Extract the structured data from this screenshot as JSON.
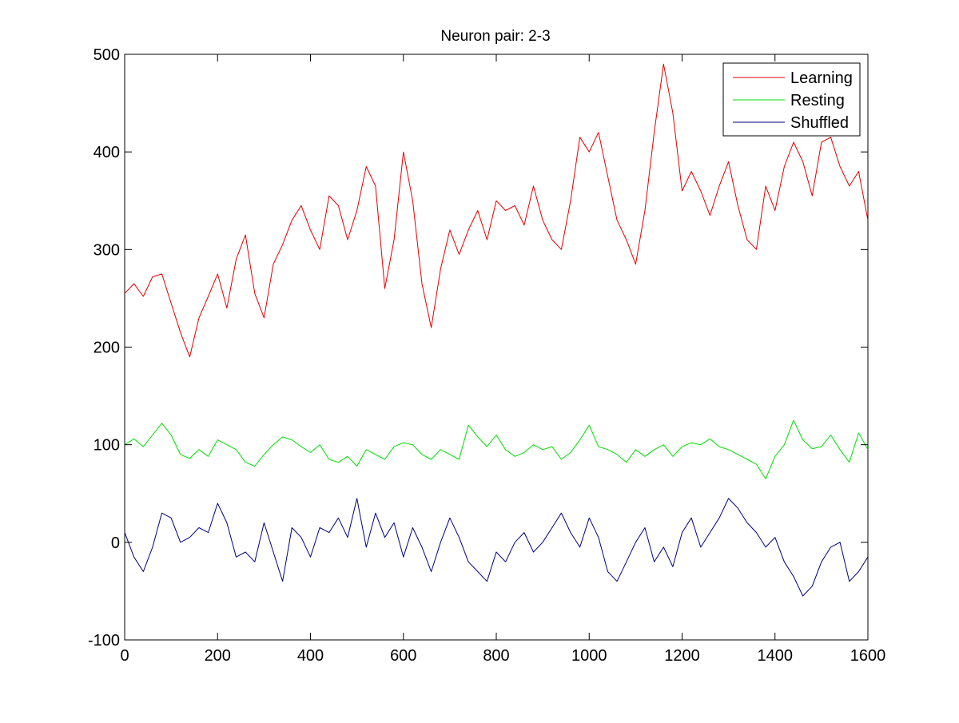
{
  "chart_data": {
    "type": "line",
    "title": "Neuron pair: 2-3",
    "xlabel": "",
    "ylabel": "",
    "xlim": [
      0,
      1600
    ],
    "ylim": [
      -100,
      500
    ],
    "xticks": [
      0,
      200,
      400,
      600,
      800,
      1000,
      1200,
      1400,
      1600
    ],
    "yticks": [
      -100,
      0,
      100,
      200,
      300,
      400,
      500
    ],
    "grid": false,
    "legend_position": "top-right",
    "series": [
      {
        "name": "Learning",
        "color": "#e00000",
        "x": [
          0,
          20,
          40,
          60,
          80,
          100,
          120,
          140,
          160,
          180,
          200,
          220,
          240,
          260,
          280,
          300,
          320,
          340,
          360,
          380,
          400,
          420,
          440,
          460,
          480,
          500,
          520,
          540,
          560,
          580,
          600,
          620,
          640,
          660,
          680,
          700,
          720,
          740,
          760,
          780,
          800,
          820,
          840,
          860,
          880,
          900,
          920,
          940,
          960,
          980,
          1000,
          1020,
          1040,
          1060,
          1080,
          1100,
          1120,
          1140,
          1160,
          1180,
          1200,
          1220,
          1240,
          1260,
          1280,
          1300,
          1320,
          1340,
          1360,
          1380,
          1400,
          1420,
          1440,
          1460,
          1480,
          1500,
          1520,
          1540,
          1560,
          1580,
          1600
        ],
        "values": [
          255,
          265,
          252,
          272,
          275,
          245,
          215,
          190,
          230,
          252,
          275,
          240,
          290,
          315,
          255,
          230,
          285,
          305,
          330,
          345,
          320,
          300,
          355,
          345,
          310,
          340,
          385,
          365,
          260,
          310,
          400,
          350,
          265,
          220,
          280,
          320,
          295,
          320,
          340,
          310,
          350,
          340,
          345,
          325,
          365,
          330,
          310,
          300,
          350,
          415,
          400,
          420,
          375,
          330,
          310,
          285,
          340,
          420,
          490,
          440,
          360,
          380,
          360,
          335,
          365,
          390,
          345,
          310,
          300,
          365,
          340,
          385,
          410,
          390,
          355,
          410,
          415,
          385,
          365,
          380,
          330
        ]
      },
      {
        "name": "Resting",
        "color": "#00dd00",
        "x": [
          0,
          20,
          40,
          60,
          80,
          100,
          120,
          140,
          160,
          180,
          200,
          220,
          240,
          260,
          280,
          300,
          320,
          340,
          360,
          380,
          400,
          420,
          440,
          460,
          480,
          500,
          520,
          540,
          560,
          580,
          600,
          620,
          640,
          660,
          680,
          700,
          720,
          740,
          760,
          780,
          800,
          820,
          840,
          860,
          880,
          900,
          920,
          940,
          960,
          980,
          1000,
          1020,
          1040,
          1060,
          1080,
          1100,
          1120,
          1140,
          1160,
          1180,
          1200,
          1220,
          1240,
          1260,
          1280,
          1300,
          1320,
          1340,
          1360,
          1380,
          1400,
          1420,
          1440,
          1460,
          1480,
          1500,
          1520,
          1540,
          1560,
          1580,
          1600
        ],
        "values": [
          100,
          106,
          98,
          110,
          122,
          110,
          90,
          86,
          95,
          88,
          105,
          100,
          95,
          82,
          78,
          90,
          100,
          108,
          105,
          98,
          92,
          100,
          85,
          82,
          88,
          78,
          95,
          90,
          85,
          98,
          102,
          100,
          90,
          85,
          95,
          90,
          85,
          120,
          108,
          98,
          110,
          95,
          88,
          92,
          100,
          95,
          98,
          85,
          92,
          105,
          120,
          98,
          95,
          90,
          82,
          95,
          88,
          95,
          100,
          88,
          98,
          102,
          100,
          106,
          98,
          95,
          90,
          85,
          80,
          65,
          88,
          100,
          125,
          105,
          96,
          98,
          110,
          95,
          82,
          112,
          95
        ]
      },
      {
        "name": "Shuffled",
        "color": "#000080",
        "x": [
          0,
          20,
          40,
          60,
          80,
          100,
          120,
          140,
          160,
          180,
          200,
          220,
          240,
          260,
          280,
          300,
          320,
          340,
          360,
          380,
          400,
          420,
          440,
          460,
          480,
          500,
          520,
          540,
          560,
          580,
          600,
          620,
          640,
          660,
          680,
          700,
          720,
          740,
          760,
          780,
          800,
          820,
          840,
          860,
          880,
          900,
          920,
          940,
          960,
          980,
          1000,
          1020,
          1040,
          1060,
          1080,
          1100,
          1120,
          1140,
          1160,
          1180,
          1200,
          1220,
          1240,
          1260,
          1280,
          1300,
          1320,
          1340,
          1360,
          1380,
          1400,
          1420,
          1440,
          1460,
          1480,
          1500,
          1520,
          1540,
          1560,
          1580,
          1600
        ],
        "values": [
          10,
          -15,
          -30,
          -5,
          30,
          25,
          0,
          5,
          15,
          10,
          40,
          20,
          -15,
          -10,
          -20,
          20,
          -10,
          -40,
          15,
          5,
          -15,
          15,
          10,
          25,
          5,
          45,
          -5,
          30,
          5,
          20,
          -15,
          15,
          -5,
          -30,
          0,
          25,
          5,
          -20,
          -30,
          -40,
          -10,
          -20,
          0,
          10,
          -10,
          0,
          15,
          30,
          10,
          -5,
          25,
          5,
          -30,
          -40,
          -20,
          0,
          15,
          -20,
          -5,
          -25,
          10,
          25,
          -5,
          10,
          25,
          45,
          35,
          20,
          10,
          -5,
          5,
          -20,
          -35,
          -55,
          -45,
          -20,
          -5,
          0,
          -40,
          -30,
          -15
        ]
      }
    ]
  }
}
